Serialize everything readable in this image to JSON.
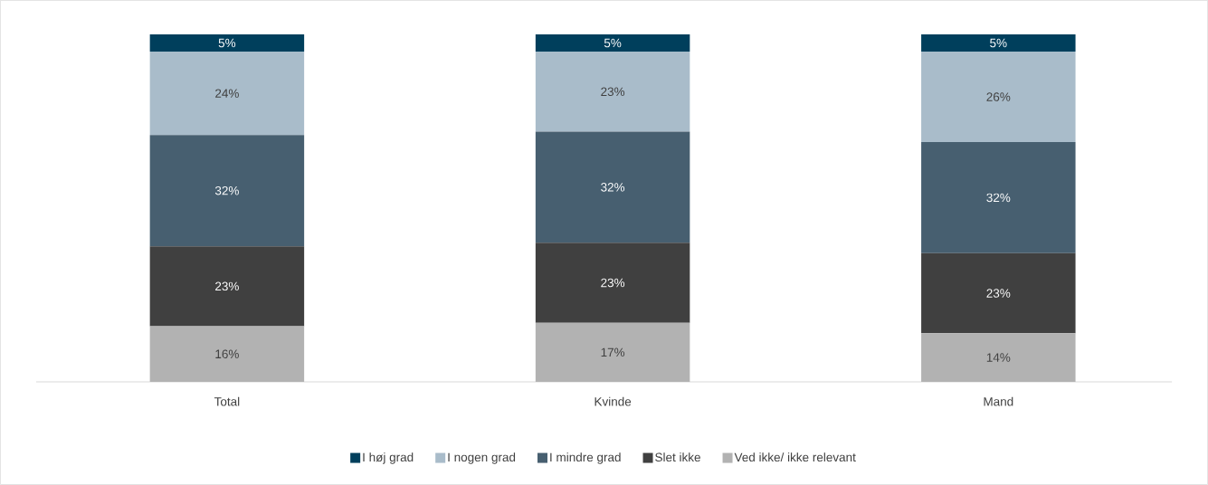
{
  "chart_data": {
    "type": "bar",
    "stacked": true,
    "categories": [
      "Total",
      "Kvinde",
      "Mand"
    ],
    "series": [
      {
        "name": "Ved ikke/ ikke relevant",
        "color": "#b2b2b2",
        "values": [
          16,
          17,
          14
        ],
        "value_labels": [
          "16%",
          "17%",
          "14%"
        ]
      },
      {
        "name": "Slet ikke",
        "color": "#404040",
        "values": [
          23,
          23,
          23
        ],
        "value_labels": [
          "23%",
          "23%",
          "23%"
        ]
      },
      {
        "name": "I mindre grad",
        "color": "#475f70",
        "values": [
          32,
          32,
          32
        ],
        "value_labels": [
          "32%",
          "32%",
          "32%"
        ]
      },
      {
        "name": "I nogen grad",
        "color": "#a9bcca",
        "values": [
          24,
          23,
          26
        ],
        "value_labels": [
          "24%",
          "23%",
          "26%"
        ]
      },
      {
        "name": "I høj grad",
        "color": "#003f5c",
        "values": [
          5,
          5,
          5
        ],
        "value_labels": [
          "5%",
          "5%",
          "5%"
        ]
      }
    ],
    "legend": "bottom"
  }
}
